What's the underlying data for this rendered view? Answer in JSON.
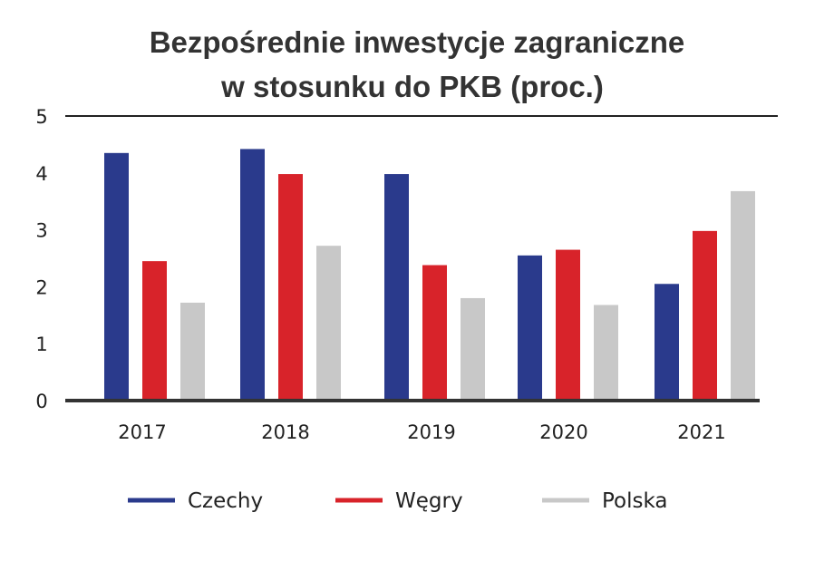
{
  "chart_data": {
    "type": "bar",
    "title_lines": [
      "Bezpośrednie inwestycje zagraniczne",
      "w stosunku do PKB (proc.)"
    ],
    "categories": [
      "2017",
      "2018",
      "2019",
      "2020",
      "2021"
    ],
    "series": [
      {
        "name": "Czechy",
        "color": "#2a3a8c",
        "values": [
          4.35,
          4.42,
          3.98,
          2.55,
          2.05
        ]
      },
      {
        "name": "Węgry",
        "color": "#d8232a",
        "values": [
          2.45,
          3.98,
          2.38,
          2.65,
          2.98
        ]
      },
      {
        "name": "Polska",
        "color": "#c8c8c8",
        "values": [
          1.72,
          2.72,
          1.8,
          1.68,
          3.68
        ]
      }
    ],
    "ylim": [
      0,
      5
    ],
    "yticks": [
      "0",
      "1",
      "2",
      "3",
      "4",
      "5"
    ],
    "grid": false,
    "legend_position": "bottom"
  }
}
